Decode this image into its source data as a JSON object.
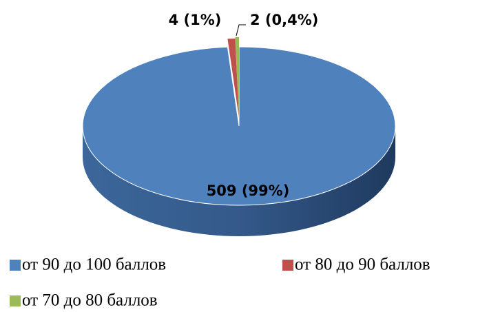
{
  "chart_data": {
    "type": "pie",
    "categories": [
      "от 90 до 100 баллов",
      "от 80 до 90 баллов",
      "от 70 до 80 баллов"
    ],
    "values": [
      509,
      4,
      2
    ],
    "value_labels": [
      "509 (99%)",
      "4 (1%)",
      "2 (0,4%)"
    ],
    "colors": [
      "#4f81bd",
      "#c0504d",
      "#9bbb59"
    ],
    "legend": "bottom"
  }
}
